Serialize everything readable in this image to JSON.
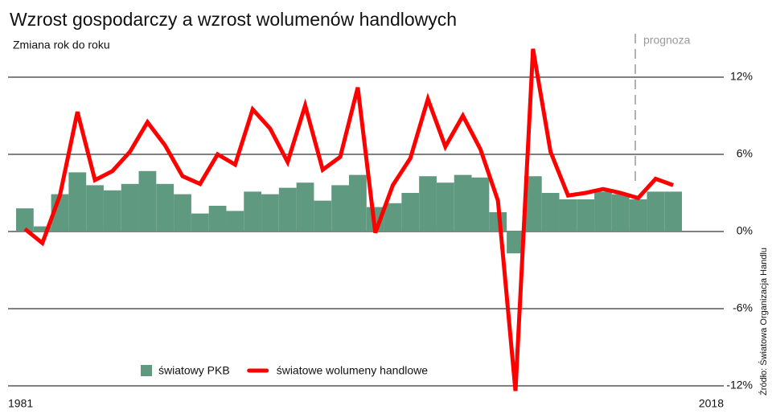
{
  "chart_data": {
    "type": "bar-line",
    "title": "Wzrost gospodarczy a wzrost wolumenów handlowych",
    "subtitle": "Zmiana rok do roku",
    "annotation": "prognoza",
    "source": "Źródło: Światowa Organizacja Handlu",
    "categories": [
      "1981",
      null,
      null,
      null,
      null,
      null,
      null,
      null,
      null,
      null,
      null,
      null,
      null,
      null,
      null,
      null,
      null,
      null,
      null,
      null,
      null,
      null,
      null,
      null,
      null,
      null,
      null,
      null,
      null,
      null,
      null,
      null,
      null,
      null,
      null,
      null,
      null,
      "2018"
    ],
    "series": [
      {
        "name": "światowy PKB",
        "kind": "bar",
        "color": "#5f9980",
        "values": [
          1.8,
          0.4,
          2.9,
          4.6,
          3.6,
          3.2,
          3.7,
          4.7,
          3.7,
          2.9,
          1.4,
          2.0,
          1.6,
          3.1,
          2.9,
          3.4,
          3.8,
          2.4,
          3.6,
          4.4,
          1.9,
          2.2,
          3.0,
          4.3,
          3.8,
          4.4,
          4.2,
          1.5,
          -1.7,
          4.3,
          3.0,
          2.5,
          2.5,
          3.1,
          2.9,
          2.5,
          3.1,
          3.1
        ]
      },
      {
        "name": "światowe wolumeny handlowe",
        "kind": "line",
        "color": "#ff0000",
        "values": [
          0.2,
          -0.9,
          2.8,
          9.3,
          4.0,
          4.7,
          6.2,
          8.5,
          6.7,
          4.3,
          3.7,
          6.0,
          5.2,
          9.5,
          8.0,
          5.4,
          9.8,
          4.8,
          5.8,
          11.2,
          -0.1,
          3.6,
          5.7,
          10.3,
          6.6,
          9.0,
          6.4,
          2.4,
          -12.4,
          14.2,
          6.2,
          2.8,
          3.0,
          3.3,
          3.0,
          2.6,
          4.1,
          3.6
        ]
      }
    ],
    "ylim": [
      -12,
      12
    ],
    "yticks": [
      {
        "value": -12,
        "label": "-12%"
      },
      {
        "value": -6,
        "label": "-6%"
      },
      {
        "value": 0,
        "label": "0%"
      },
      {
        "value": 6,
        "label": "6%"
      },
      {
        "value": 12,
        "label": "12%"
      }
    ],
    "grid": true
  }
}
